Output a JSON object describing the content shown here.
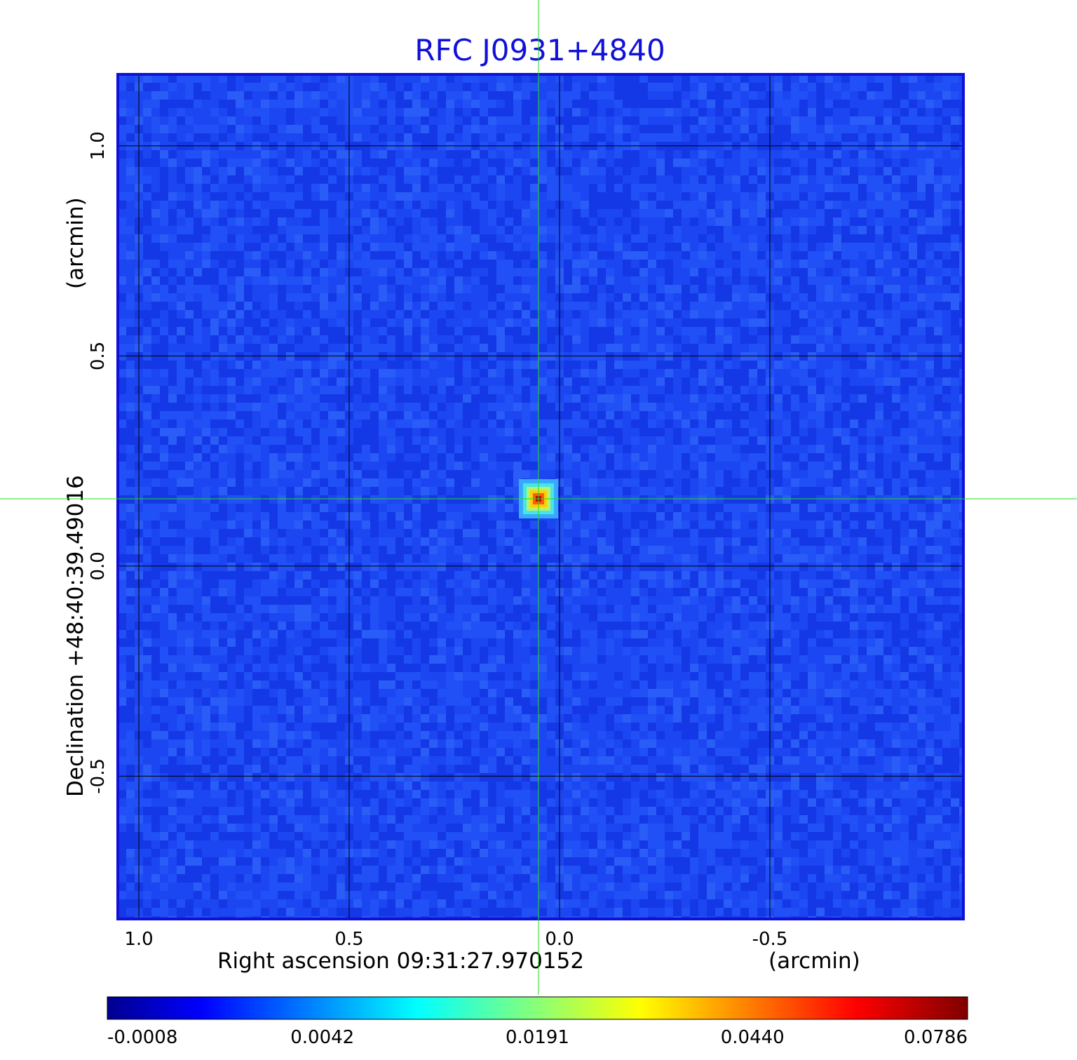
{
  "chart_data": {
    "type": "heatmap",
    "title": "RFC J0931+4840",
    "xlabel": "Right ascension  09:31:27.970152",
    "xunit": "(arcmin)",
    "ylabel": "Declination  +48:40:39.49016",
    "yunit": "(arcmin)",
    "xlim": [
      1.05,
      -0.96
    ],
    "ylim": [
      -0.84,
      1.17
    ],
    "x_ticks": [
      1.0,
      0.5,
      0.0,
      -0.5
    ],
    "x_tick_labels": [
      "1.0",
      "0.5",
      "0.0",
      "-0.5"
    ],
    "y_ticks": [
      1.0,
      0.5,
      0.0,
      -0.5
    ],
    "y_tick_labels": [
      "1.0",
      "0.5",
      "0.0",
      "-0.5"
    ],
    "grid": true,
    "crosshair": {
      "x": 0.05,
      "y": 0.16
    },
    "source": {
      "x": 0.05,
      "y": 0.16,
      "peak": 0.0786
    },
    "colorbar": {
      "ticks": [
        -0.0008,
        0.0042,
        0.0191,
        0.044,
        0.0786
      ],
      "tick_labels": [
        "-0.0008",
        "0.0042",
        "0.0191",
        "0.0440",
        "0.0786"
      ],
      "colormap": "jet",
      "placement": "bottom"
    },
    "colors": {
      "title": "#1010d8",
      "frame": "#1010d8",
      "crosshair": "#22dd22",
      "background_field": "#1a40f0",
      "grid": "#000000"
    }
  }
}
